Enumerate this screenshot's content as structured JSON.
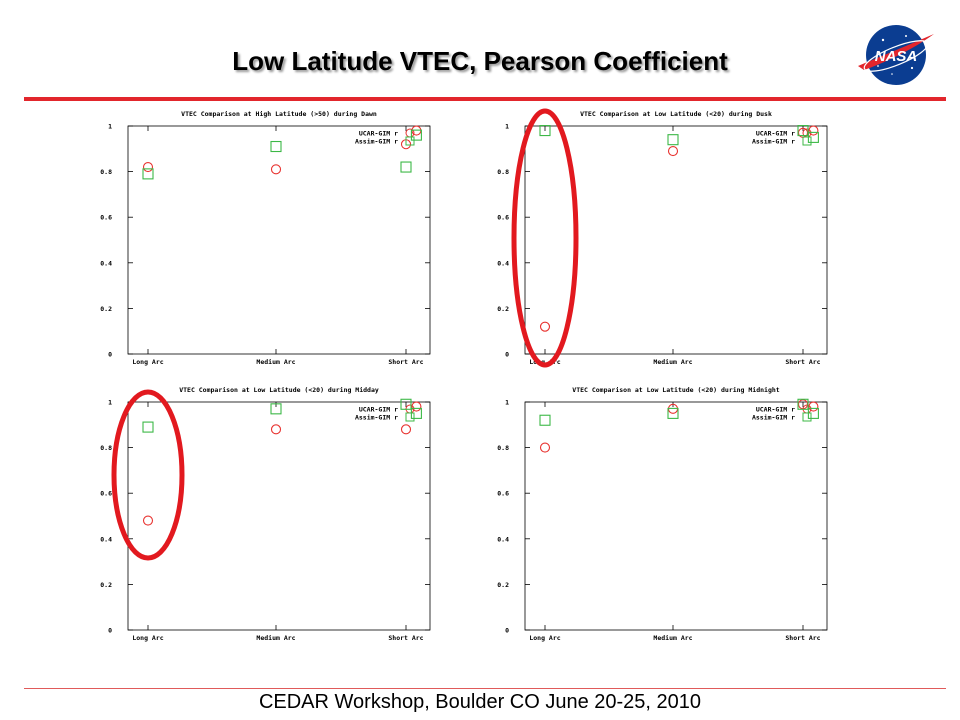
{
  "slide": {
    "title": "Low Latitude VTEC, Pearson Coefficient",
    "footer": "CEDAR Workshop, Boulder CO June 20-25, 2010",
    "accent_color": "#e2262c",
    "logo_icon": "nasa-meatball-icon"
  },
  "chart_data": [
    {
      "type": "scatter",
      "title": "VTEC Comparison at High Latitude (>50) during Dawn",
      "categories": [
        "Long Arc",
        "Medium Arc",
        "Short Arc"
      ],
      "ylim": [
        0,
        1
      ],
      "yticks": [
        0,
        0.2,
        0.4,
        0.6,
        0.8,
        1
      ],
      "ytick_labels": [
        "0",
        "0.2",
        "0.4",
        "0.6",
        "0.8",
        "1"
      ],
      "legend_position": "top-right",
      "grid": false,
      "series": [
        {
          "name": "UCAR-GIM r",
          "marker": "circle",
          "color": "#e8322f",
          "points": [
            {
              "x": 0,
              "y": 0.82
            },
            {
              "x": 1,
              "y": 0.81
            },
            {
              "x": 2,
              "y": 0.92
            },
            {
              "x": 2.08,
              "y": 0.98
            }
          ]
        },
        {
          "name": "Assim-GIM r",
          "marker": "square",
          "color": "#3cb846",
          "points": [
            {
              "x": 0,
              "y": 0.79
            },
            {
              "x": 1,
              "y": 0.91
            },
            {
              "x": 2,
              "y": 0.82
            },
            {
              "x": 2.08,
              "y": 0.96
            }
          ]
        }
      ]
    },
    {
      "type": "scatter",
      "title": "VTEC Comparison at Low Latitude (<20) during Dusk",
      "categories": [
        "Long Arc",
        "Medium Arc",
        "Short Arc"
      ],
      "ylim": [
        0,
        1
      ],
      "yticks": [
        0,
        0.2,
        0.4,
        0.6,
        0.8,
        1
      ],
      "ytick_labels": [
        "0",
        "0.2",
        "0.4",
        "0.6",
        "0.8",
        "1"
      ],
      "legend_position": "top-right",
      "grid": false,
      "series": [
        {
          "name": "UCAR-GIM r",
          "marker": "circle",
          "color": "#e8322f",
          "points": [
            {
              "x": 0,
              "y": 0.12
            },
            {
              "x": 1,
              "y": 0.89
            },
            {
              "x": 2,
              "y": 0.97
            },
            {
              "x": 2.08,
              "y": 0.98
            }
          ]
        },
        {
          "name": "Assim-GIM r",
          "marker": "square",
          "color": "#3cb846",
          "points": [
            {
              "x": 0,
              "y": 0.98
            },
            {
              "x": 1,
              "y": 0.94
            },
            {
              "x": 2,
              "y": 0.98
            },
            {
              "x": 2.08,
              "y": 0.95
            }
          ]
        }
      ]
    },
    {
      "type": "scatter",
      "title": "VTEC Comparison at Low Latitude (<20) during Midday",
      "categories": [
        "Long Arc",
        "Medium Arc",
        "Short Arc"
      ],
      "ylim": [
        0,
        1
      ],
      "yticks": [
        0,
        0.2,
        0.4,
        0.6,
        0.8,
        1
      ],
      "ytick_labels": [
        "0",
        "0.2",
        "0.4",
        "0.6",
        "0.8",
        "1"
      ],
      "legend_position": "top-right",
      "grid": false,
      "series": [
        {
          "name": "UCAR-GIM r",
          "marker": "circle",
          "color": "#e8322f",
          "points": [
            {
              "x": 0,
              "y": 0.48
            },
            {
              "x": 1,
              "y": 0.88
            },
            {
              "x": 2,
              "y": 0.88
            },
            {
              "x": 2.08,
              "y": 0.98
            }
          ]
        },
        {
          "name": "Assim-GIM r",
          "marker": "square",
          "color": "#3cb846",
          "points": [
            {
              "x": 0,
              "y": 0.89
            },
            {
              "x": 1,
              "y": 0.97
            },
            {
              "x": 2,
              "y": 0.99
            },
            {
              "x": 2.08,
              "y": 0.95
            }
          ]
        }
      ]
    },
    {
      "type": "scatter",
      "title": "VTEC Comparison at Low Latitude (<20) during Midnight",
      "categories": [
        "Long Arc",
        "Medium Arc",
        "Short Arc"
      ],
      "ylim": [
        0,
        1
      ],
      "yticks": [
        0,
        0.2,
        0.4,
        0.6,
        0.8,
        1
      ],
      "ytick_labels": [
        "0",
        "0.2",
        "0.4",
        "0.6",
        "0.8",
        "1"
      ],
      "legend_position": "top-right",
      "grid": false,
      "series": [
        {
          "name": "UCAR-GIM r",
          "marker": "circle",
          "color": "#e8322f",
          "points": [
            {
              "x": 0,
              "y": 0.8
            },
            {
              "x": 1,
              "y": 0.97
            },
            {
              "x": 2,
              "y": 0.99
            },
            {
              "x": 2.08,
              "y": 0.98
            }
          ]
        },
        {
          "name": "Assim-GIM r",
          "marker": "square",
          "color": "#3cb846",
          "points": [
            {
              "x": 0,
              "y": 0.92
            },
            {
              "x": 1,
              "y": 0.95
            },
            {
              "x": 2,
              "y": 0.99
            },
            {
              "x": 2.08,
              "y": 0.95
            }
          ]
        }
      ]
    }
  ]
}
